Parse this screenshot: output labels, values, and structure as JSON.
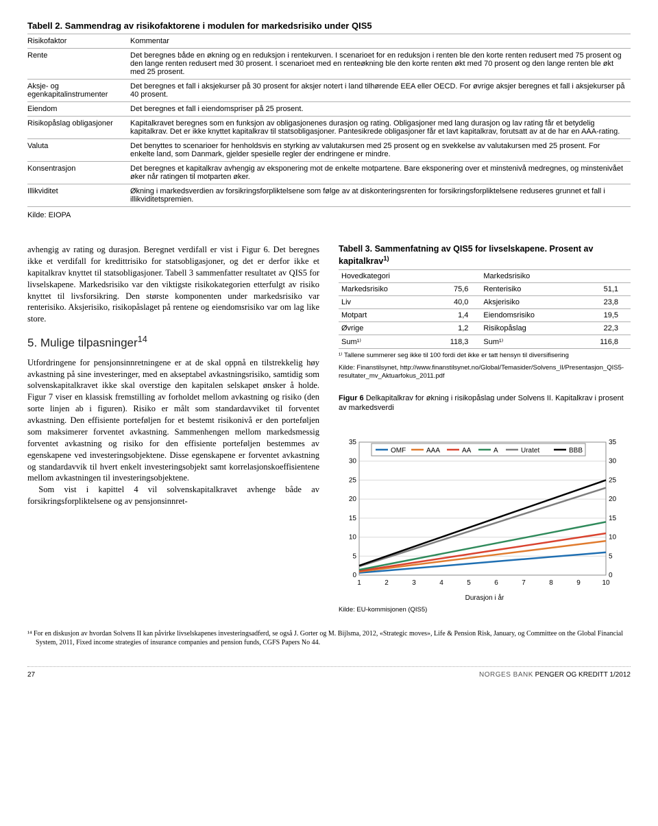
{
  "table2": {
    "title": "Tabell 2. Sammendrag av risikofaktorene i modulen for markedsrisiko under QIS5",
    "headers": [
      "Risikofaktor",
      "Kommentar"
    ],
    "rows": [
      [
        "Rente",
        "Det beregnes både en økning og en reduksjon i rentekurven. I scenarioet for en reduksjon i renten ble den korte renten redusert med 75 prosent og den lange renten redusert med 30 prosent. I scenarioet med en renteøkning ble den korte renten økt med 70 prosent og den lange renten ble økt med 25 prosent."
      ],
      [
        "Aksje- og egenkapitalinstrumenter",
        "Det beregnes et fall i aksjekurser på 30 prosent for aksjer notert i land tilhørende EEA eller OECD. For øvrige aksjer beregnes et fall i aksjekurser på 40 prosent."
      ],
      [
        "Eiendom",
        "Det beregnes et fall i eiendomspriser på 25 prosent."
      ],
      [
        "Risikopåslag obligasjoner",
        "Kapitalkravet beregnes som en funksjon av obligasjonenes durasjon og rating. Obligasjoner med lang durasjon og lav rating får et betydelig kapitalkrav. Det er ikke knyttet kapitalkrav til statsobligasjoner. Pantesikrede obligasjoner får et lavt kapitalkrav, forutsatt av at de har en AAA-rating."
      ],
      [
        "Valuta",
        "Det benyttes to scenarioer for henholdsvis en styrking av valutakursen med 25 prosent og en svekkelse av valutakursen med 25 prosent. For enkelte land, som Danmark, gjelder spesielle regler der endringene er mindre."
      ],
      [
        "Konsentrasjon",
        "Det beregnes et kapitalkrav avhengig av eksponering mot de enkelte motpartene. Bare eksponering over et minstenivå medregnes, og minstenivået øker når ratingen til motparten øker."
      ],
      [
        "Illikviditet",
        "Økning i markedsverdien av forsikringsforpliktelsene som følge av at diskonteringsrenten for forsikringsforpliktelsene reduseres grunnet et fall i illikviditetspremien."
      ]
    ],
    "source": "Kilde: EIOPA"
  },
  "leftCol": {
    "p1": "avhengig av rating og durasjon. Beregnet verdifall er vist i Figur 6. Det beregnes ikke et verdifall for kredittrisiko for statsobligasjoner, og det er derfor ikke et kapitalkrav knyttet til statsobligasjoner. Tabell 3 sammenfatter resultatet av QIS5 for livselskapene. Markedsrisiko var den viktigste risikokategorien etterfulgt av risiko knyttet til livsforsikring. Den største komponenten under markedsrisiko var renterisiko. Aksjerisiko, risikopåslaget på rentene og eiendomsrisiko var om lag like store.",
    "sect5": "5. Mulige tilpasninger",
    "sup14": "14",
    "p2": "Utfordringene for pensjonsinnretningene er at de skal oppnå en tilstrekkelig høy avkastning på sine investeringer, med en akseptabel avkastningsrisiko, samtidig som solvenskapitalkravet ikke skal overstige den kapitalen selskapet ønsker å holde. Figur 7 viser en klassisk fremstilling av forholdet mellom avkastning og risiko (den sorte linjen ab i figuren). Risiko er målt som standardavviket til forventet avkastning. Den effisiente porteføljen for et bestemt risikonivå er den porteføljen som maksimerer forventet avkastning. Sammenhengen mellom markedsmessig forventet avkastning og risiko for den effisiente porteføljen bestemmes av egenskapene ved investeringsobjektene. Disse egenskapene er forventet avkastning og standardavvik til hvert enkelt investeringsobjekt samt korrelasjonskoeffisientene mellom avkastningen til investeringsobjektene.",
    "p3": "Som vist i kapittel 4 vil solvenskapitalkravet avhenge både av forsikringsforpliktelsene og av pensjonsinnret-"
  },
  "table3": {
    "title": "Tabell 3. Sammenfatning av QIS5 for livselskapene. Prosent av kapitalkrav",
    "sup": "1)",
    "headers": [
      "Hovedkategori",
      "",
      "Markedsrisiko",
      ""
    ],
    "rows": [
      [
        "Markedsrisiko",
        "75,6",
        "Renterisiko",
        "51,1"
      ],
      [
        "Liv",
        "40,0",
        "Aksjerisiko",
        "23,8"
      ],
      [
        "Motpart",
        "1,4",
        "Eiendomsrisiko",
        "19,5"
      ],
      [
        "Øvrige",
        "1,2",
        "Risikopåslag",
        "22,3"
      ],
      [
        "Sum¹⁾",
        "118,3",
        "Sum¹⁾",
        "116,8"
      ]
    ],
    "fn1": "¹⁾ Tallene summerer seg ikke til 100 fordi det ikke er tatt hensyn til diversifisering",
    "fn2": "Kilde: Finanstilsynet, http://www.finanstilsynet.no/Global/Temasider/Solvens_II/Presentasjon_QIS5-resultater_mv_Aktuarfokus_2011.pdf"
  },
  "fig6": {
    "title": "Figur 6 Delkapitalkrav for økning i risikopåslag under Solvens II. Kapitalkrav i prosent av markedsverdi",
    "legend": [
      "OMF",
      "AAA",
      "AA",
      "A",
      "Uratet",
      "BBB"
    ],
    "colors": {
      "OMF": "#1f6fb2",
      "AAA": "#e07b2e",
      "AA": "#d9432f",
      "A": "#2f8a5b",
      "Uratet": "#7e7e7e",
      "BBB": "#000000"
    },
    "gridColor": "#d9d9d9",
    "xlabel": "Durasjon i år",
    "yTicks": [
      0,
      5,
      10,
      15,
      20,
      25,
      30,
      35
    ],
    "xTicks": [
      1,
      2,
      3,
      4,
      5,
      6,
      7,
      8,
      9,
      10
    ],
    "ylim": [
      0,
      35
    ],
    "xlim": [
      1,
      10
    ],
    "series": {
      "OMF": [
        0.6,
        1.2,
        1.8,
        2.4,
        3.0,
        3.6,
        4.2,
        4.8,
        5.4,
        6.0
      ],
      "AAA": [
        0.9,
        1.8,
        2.7,
        3.6,
        4.5,
        5.4,
        6.3,
        7.2,
        8.1,
        9.0
      ],
      "AA": [
        1.1,
        2.2,
        3.3,
        4.4,
        5.5,
        6.6,
        7.7,
        8.8,
        9.9,
        11.0
      ],
      "A": [
        1.4,
        2.8,
        4.2,
        5.6,
        7.0,
        8.4,
        9.8,
        11.2,
        12.6,
        14.0
      ],
      "Uratet": [
        2.3,
        4.6,
        6.9,
        9.2,
        11.5,
        13.8,
        16.1,
        18.4,
        20.7,
        23.0
      ],
      "BBB": [
        2.5,
        5.0,
        7.5,
        10.0,
        12.5,
        15.0,
        17.5,
        20.0,
        22.5,
        25.0
      ]
    },
    "source": "Kilde: EU-kommisjonen (QIS5)"
  },
  "footnote14": "¹⁴  For en diskusjon av hvordan Solvens II kan påvirke livselskapenes investeringsadferd, se også J. Gorter og M. Bijlsma, 2012, «Strategic moves», Life & Pension Risk, January, og Committee on the Global Financial System, 2011, Fixed income strategies of insurance companies and pension funds, CGFS Papers No 44.",
  "footer": {
    "page": "27",
    "bank": "NORGES BANK",
    "pub": " PENGER OG KREDITT 1/2012"
  }
}
